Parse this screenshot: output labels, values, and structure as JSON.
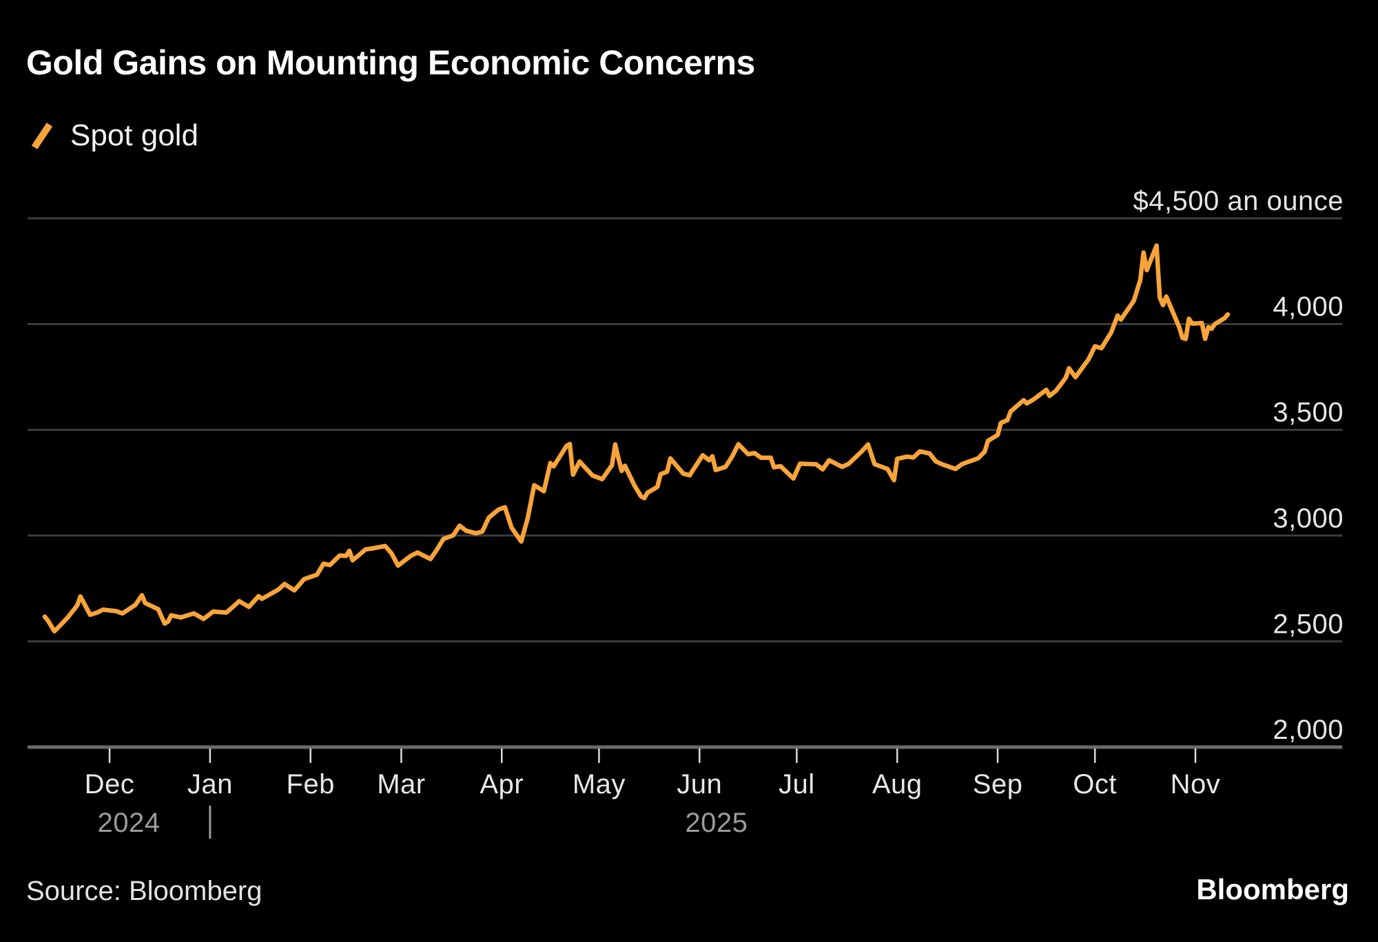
{
  "title": "Gold Gains on Mounting Economic Concerns",
  "legend": {
    "label": "Spot gold"
  },
  "footer": {
    "source": "Source: Bloomberg",
    "brand": "Bloomberg"
  },
  "colors": {
    "background": "#000000",
    "line": "#F8A43A",
    "grid": "#3D3D3D",
    "axis": "#6B6B6B",
    "tick": "#DCDCDC",
    "label": "#E6E6E6",
    "year_label": "#9C9C9C"
  },
  "chart_data": {
    "type": "line",
    "title": "Gold Gains on Mounting Economic Concerns",
    "series_name": "Spot gold",
    "legend_position": "top-left",
    "grid": "horizontal",
    "y_axis": {
      "min": 2000,
      "max": 4500,
      "top_label": "$4,500 an ounce",
      "ticks": [
        {
          "value": 4500,
          "label": "$4,500 an ounce"
        },
        {
          "value": 4000,
          "label": "4,000"
        },
        {
          "value": 3500,
          "label": "3,500"
        },
        {
          "value": 3000,
          "label": "3,000"
        },
        {
          "value": 2500,
          "label": "2,500"
        },
        {
          "value": 2000,
          "label": "2,000"
        }
      ]
    },
    "x_axis": {
      "ticks": [
        {
          "label": "Dec",
          "date": "2024-12-01"
        },
        {
          "label": "Jan",
          "date": "2025-01-01"
        },
        {
          "label": "Feb",
          "date": "2025-02-01"
        },
        {
          "label": "Mar",
          "date": "2025-03-01"
        },
        {
          "label": "Apr",
          "date": "2025-04-01"
        },
        {
          "label": "May",
          "date": "2025-05-01"
        },
        {
          "label": "Jun",
          "date": "2025-06-01"
        },
        {
          "label": "Jul",
          "date": "2025-07-01"
        },
        {
          "label": "Aug",
          "date": "2025-08-01"
        },
        {
          "label": "Sep",
          "date": "2025-09-01"
        },
        {
          "label": "Oct",
          "date": "2025-10-01"
        },
        {
          "label": "Nov",
          "date": "2025-11-01"
        }
      ],
      "years": [
        "2024",
        "2025"
      ]
    },
    "points": [
      [
        "2024-11-11",
        2617
      ],
      [
        "2024-11-12",
        2598
      ],
      [
        "2024-11-14",
        2548
      ],
      [
        "2024-11-15",
        2563
      ],
      [
        "2024-11-18",
        2611
      ],
      [
        "2024-11-20",
        2650
      ],
      [
        "2024-11-21",
        2670
      ],
      [
        "2024-11-22",
        2712
      ],
      [
        "2024-11-25",
        2626
      ],
      [
        "2024-11-27",
        2635
      ],
      [
        "2024-11-29",
        2650
      ],
      [
        "2024-12-03",
        2643
      ],
      [
        "2024-12-05",
        2632
      ],
      [
        "2024-12-09",
        2673
      ],
      [
        "2024-12-11",
        2718
      ],
      [
        "2024-12-12",
        2681
      ],
      [
        "2024-12-16",
        2652
      ],
      [
        "2024-12-18",
        2584
      ],
      [
        "2024-12-19",
        2593
      ],
      [
        "2024-12-20",
        2623
      ],
      [
        "2024-12-23",
        2613
      ],
      [
        "2024-12-27",
        2632
      ],
      [
        "2024-12-30",
        2606
      ],
      [
        "2025-01-02",
        2641
      ],
      [
        "2025-01-06",
        2636
      ],
      [
        "2025-01-08",
        2662
      ],
      [
        "2025-01-10",
        2690
      ],
      [
        "2025-01-13",
        2663
      ],
      [
        "2025-01-16",
        2714
      ],
      [
        "2025-01-17",
        2701
      ],
      [
        "2025-01-22",
        2744
      ],
      [
        "2025-01-24",
        2771
      ],
      [
        "2025-01-27",
        2741
      ],
      [
        "2025-01-30",
        2794
      ],
      [
        "2025-02-03",
        2815
      ],
      [
        "2025-02-05",
        2867
      ],
      [
        "2025-02-07",
        2861
      ],
      [
        "2025-02-10",
        2906
      ],
      [
        "2025-02-12",
        2904
      ],
      [
        "2025-02-13",
        2928
      ],
      [
        "2025-02-14",
        2883
      ],
      [
        "2025-02-18",
        2935
      ],
      [
        "2025-02-20",
        2939
      ],
      [
        "2025-02-24",
        2951
      ],
      [
        "2025-02-26",
        2916
      ],
      [
        "2025-02-28",
        2858
      ],
      [
        "2025-03-04",
        2905
      ],
      [
        "2025-03-06",
        2920
      ],
      [
        "2025-03-10",
        2889
      ],
      [
        "2025-03-12",
        2934
      ],
      [
        "2025-03-14",
        2984
      ],
      [
        "2025-03-17",
        3001
      ],
      [
        "2025-03-19",
        3047
      ],
      [
        "2025-03-21",
        3023
      ],
      [
        "2025-03-24",
        3011
      ],
      [
        "2025-03-26",
        3019
      ],
      [
        "2025-03-28",
        3085
      ],
      [
        "2025-03-31",
        3123
      ],
      [
        "2025-04-02",
        3134
      ],
      [
        "2025-04-04",
        3038
      ],
      [
        "2025-04-07",
        2972
      ],
      [
        "2025-04-09",
        3082
      ],
      [
        "2025-04-11",
        3238
      ],
      [
        "2025-04-14",
        3210
      ],
      [
        "2025-04-16",
        3343
      ],
      [
        "2025-04-17",
        3327
      ],
      [
        "2025-04-21",
        3424
      ],
      [
        "2025-04-22",
        3433
      ],
      [
        "2025-04-23",
        3288
      ],
      [
        "2025-04-25",
        3350
      ],
      [
        "2025-04-29",
        3284
      ],
      [
        "2025-05-02",
        3267
      ],
      [
        "2025-05-05",
        3333
      ],
      [
        "2025-05-06",
        3431
      ],
      [
        "2025-05-07",
        3365
      ],
      [
        "2025-05-08",
        3306
      ],
      [
        "2025-05-09",
        3330
      ],
      [
        "2025-05-12",
        3235
      ],
      [
        "2025-05-14",
        3185
      ],
      [
        "2025-05-15",
        3177
      ],
      [
        "2025-05-16",
        3203
      ],
      [
        "2025-05-19",
        3230
      ],
      [
        "2025-05-20",
        3290
      ],
      [
        "2025-05-22",
        3302
      ],
      [
        "2025-05-23",
        3365
      ],
      [
        "2025-05-27",
        3293
      ],
      [
        "2025-05-29",
        3285
      ],
      [
        "2025-05-30",
        3310
      ],
      [
        "2025-06-02",
        3380
      ],
      [
        "2025-06-04",
        3356
      ],
      [
        "2025-06-05",
        3375
      ],
      [
        "2025-06-06",
        3310
      ],
      [
        "2025-06-09",
        3325
      ],
      [
        "2025-06-11",
        3372
      ],
      [
        "2025-06-13",
        3432
      ],
      [
        "2025-06-16",
        3385
      ],
      [
        "2025-06-18",
        3390
      ],
      [
        "2025-06-20",
        3368
      ],
      [
        "2025-06-23",
        3368
      ],
      [
        "2025-06-24",
        3323
      ],
      [
        "2025-06-26",
        3328
      ],
      [
        "2025-06-30",
        3270
      ],
      [
        "2025-07-02",
        3340
      ],
      [
        "2025-07-07",
        3337
      ],
      [
        "2025-07-09",
        3313
      ],
      [
        "2025-07-11",
        3356
      ],
      [
        "2025-07-15",
        3325
      ],
      [
        "2025-07-17",
        3339
      ],
      [
        "2025-07-21",
        3397
      ],
      [
        "2025-07-23",
        3431
      ],
      [
        "2025-07-25",
        3338
      ],
      [
        "2025-07-29",
        3315
      ],
      [
        "2025-07-31",
        3262
      ],
      [
        "2025-08-01",
        3363
      ],
      [
        "2025-08-04",
        3373
      ],
      [
        "2025-08-06",
        3369
      ],
      [
        "2025-08-08",
        3398
      ],
      [
        "2025-08-11",
        3388
      ],
      [
        "2025-08-13",
        3350
      ],
      [
        "2025-08-15",
        3336
      ],
      [
        "2025-08-19",
        3315
      ],
      [
        "2025-08-21",
        3338
      ],
      [
        "2025-08-26",
        3366
      ],
      [
        "2025-08-28",
        3397
      ],
      [
        "2025-08-29",
        3448
      ],
      [
        "2025-09-01",
        3476
      ],
      [
        "2025-09-02",
        3533
      ],
      [
        "2025-09-04",
        3546
      ],
      [
        "2025-09-05",
        3587
      ],
      [
        "2025-09-09",
        3640
      ],
      [
        "2025-09-10",
        3625
      ],
      [
        "2025-09-12",
        3643
      ],
      [
        "2025-09-16",
        3689
      ],
      [
        "2025-09-17",
        3660
      ],
      [
        "2025-09-19",
        3685
      ],
      [
        "2025-09-22",
        3746
      ],
      [
        "2025-09-23",
        3791
      ],
      [
        "2025-09-25",
        3749
      ],
      [
        "2025-09-29",
        3833
      ],
      [
        "2025-10-01",
        3895
      ],
      [
        "2025-10-03",
        3886
      ],
      [
        "2025-10-06",
        3960
      ],
      [
        "2025-10-08",
        4040
      ],
      [
        "2025-10-09",
        4021
      ],
      [
        "2025-10-13",
        4110
      ],
      [
        "2025-10-15",
        4209
      ],
      [
        "2025-10-16",
        4338
      ],
      [
        "2025-10-17",
        4255
      ],
      [
        "2025-10-20",
        4371
      ],
      [
        "2025-10-21",
        4125
      ],
      [
        "2025-10-22",
        4090
      ],
      [
        "2025-10-23",
        4130
      ],
      [
        "2025-10-27",
        3985
      ],
      [
        "2025-10-28",
        3935
      ],
      [
        "2025-10-29",
        3930
      ],
      [
        "2025-10-30",
        4025
      ],
      [
        "2025-10-31",
        4002
      ],
      [
        "2025-11-03",
        4005
      ],
      [
        "2025-11-04",
        3930
      ],
      [
        "2025-11-05",
        3985
      ],
      [
        "2025-11-06",
        3978
      ],
      [
        "2025-11-07",
        4000
      ],
      [
        "2025-11-10",
        4028
      ],
      [
        "2025-11-11",
        4046
      ]
    ]
  }
}
